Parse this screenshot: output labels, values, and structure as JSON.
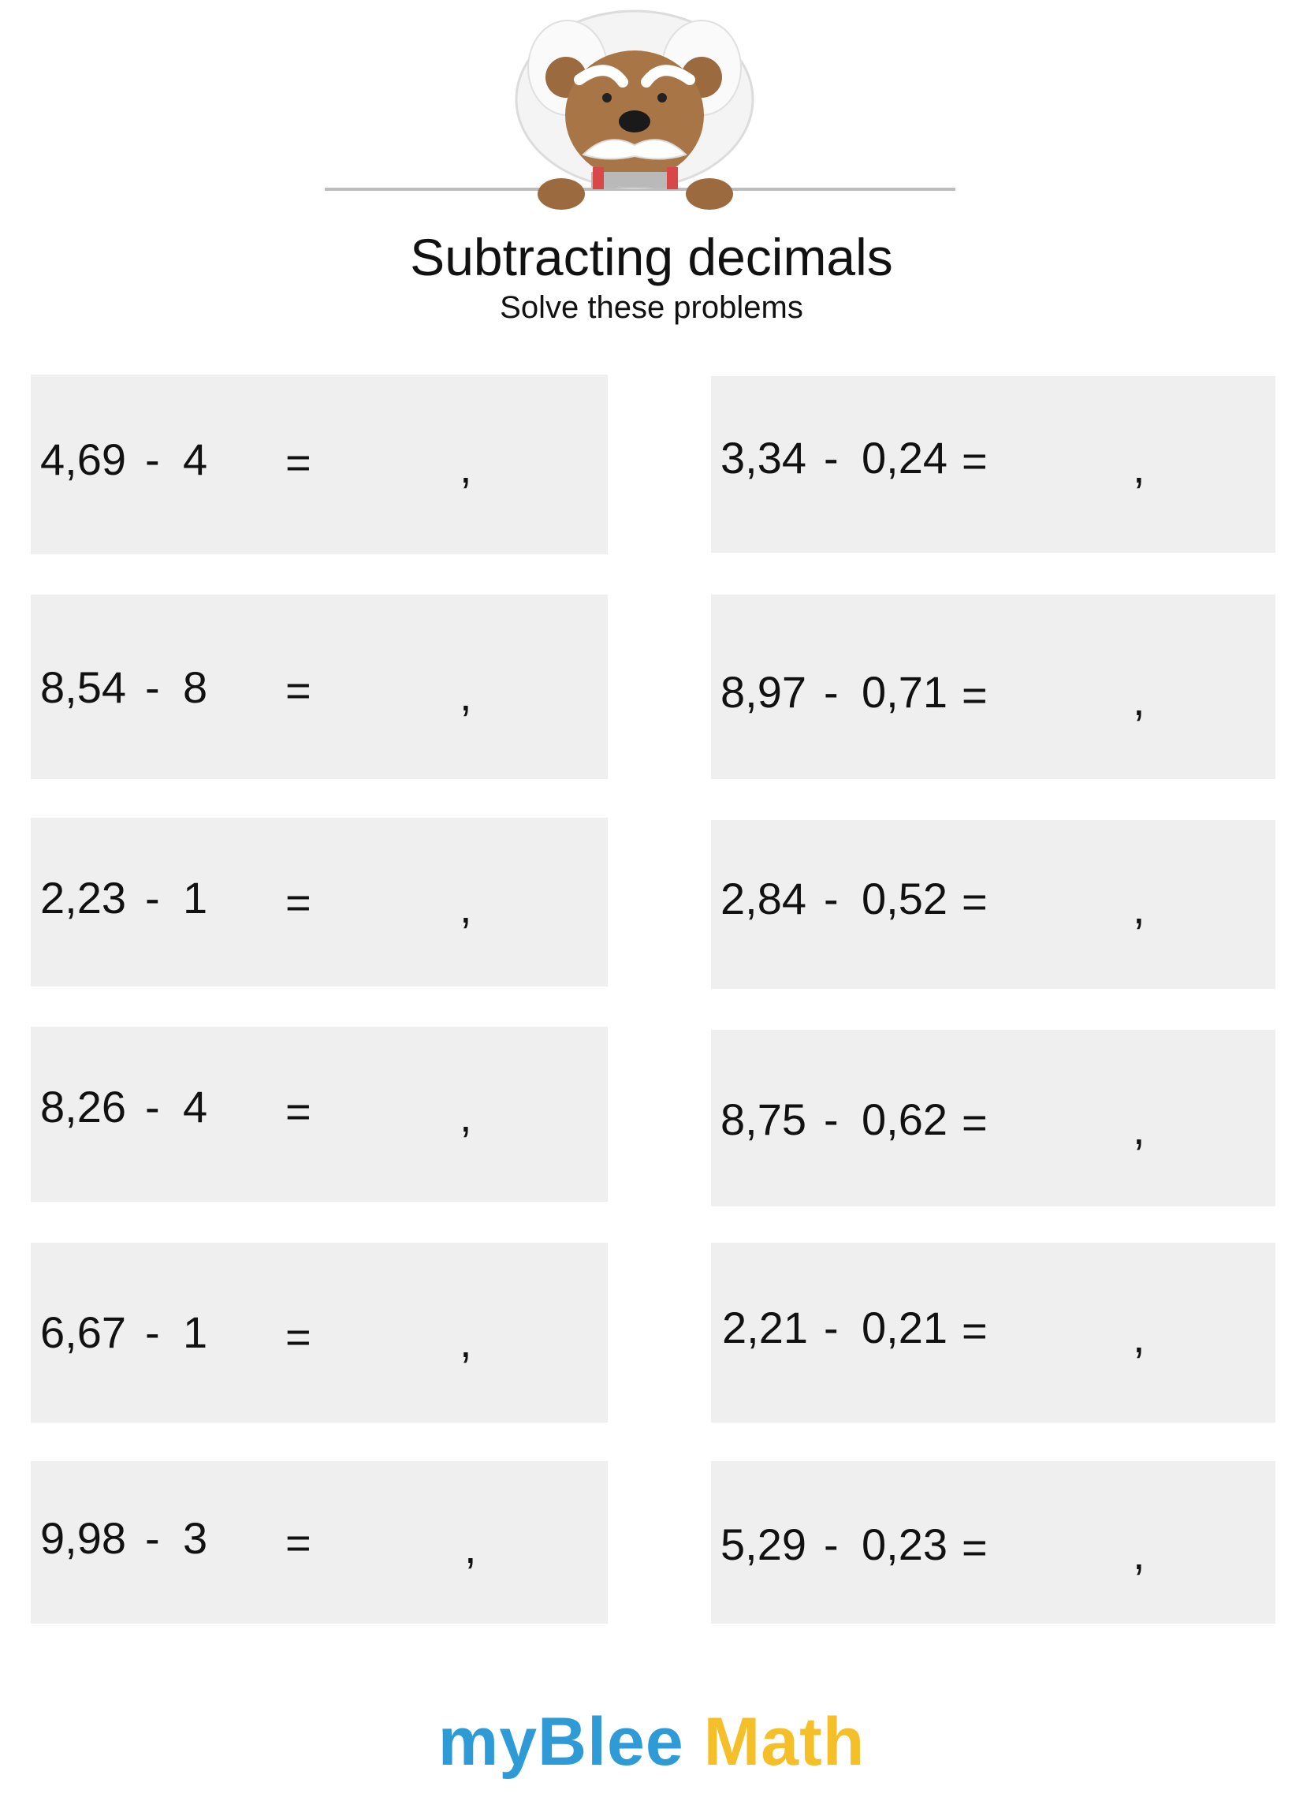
{
  "title": "Subtracting decimals",
  "subtitle": "Solve these problems",
  "equals_sign": "=",
  "comma_sign": ",",
  "problems_left": [
    {
      "a": "4,69",
      "minus": "-",
      "b": "4"
    },
    {
      "a": "8,54",
      "minus": "-",
      "b": "8"
    },
    {
      "a": "2,23",
      "minus": "-",
      "b": "1"
    },
    {
      "a": "8,26",
      "minus": "-",
      "b": "4"
    },
    {
      "a": "6,67",
      "minus": "-",
      "b": "1"
    },
    {
      "a": "9,98",
      "minus": "-",
      "b": "3"
    }
  ],
  "problems_right": [
    {
      "a": "3,34",
      "minus": "-",
      "b": "0,24"
    },
    {
      "a": "8,97",
      "minus": "-",
      "b": "0,71"
    },
    {
      "a": "2,84",
      "minus": "-",
      "b": "0,52"
    },
    {
      "a": "8,75",
      "minus": "-",
      "b": "0,62"
    },
    {
      "a": "2,21",
      "minus": "-",
      "b": "0,21"
    },
    {
      "a": "5,29",
      "minus": "-",
      "b": "0,23"
    }
  ],
  "logo": {
    "part1": "my",
    "part2": "Blee",
    "part3": " Math"
  },
  "colors": {
    "box_background": "#efefef",
    "logo_blue": "#2e9bd6",
    "logo_yellow": "#f5bf2a"
  }
}
